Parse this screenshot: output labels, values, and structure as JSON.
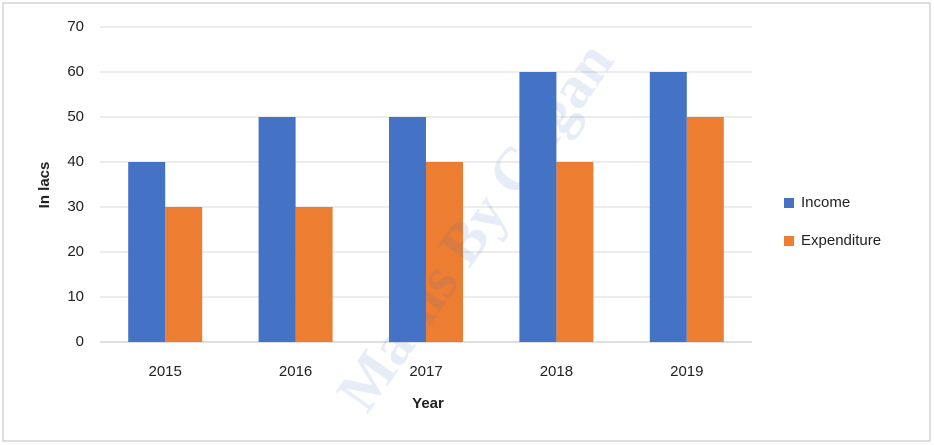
{
  "chart_data": {
    "type": "bar",
    "categories": [
      "2015",
      "2016",
      "2017",
      "2018",
      "2019"
    ],
    "series": [
      {
        "name": "Income",
        "color": "#4472c4",
        "values": [
          40,
          50,
          50,
          60,
          60
        ]
      },
      {
        "name": "Expenditure",
        "color": "#ed7d31",
        "values": [
          30,
          30,
          40,
          40,
          50
        ]
      }
    ],
    "y_label": "In lacs",
    "x_label": "Year",
    "ylim": [
      0,
      70
    ],
    "yticks": [
      0,
      10,
      20,
      30,
      40,
      50,
      60,
      70
    ],
    "grid": true,
    "legend": "right",
    "watermark": "Maths By Gagan"
  }
}
